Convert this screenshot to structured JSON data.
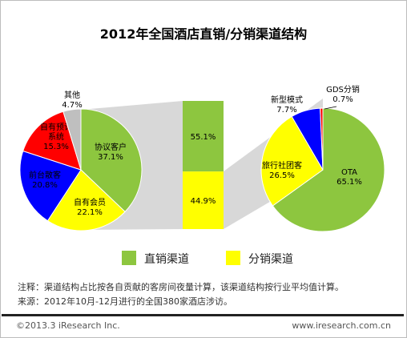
{
  "colors": {
    "green": "#8dc63f",
    "yellow": "#ffff00",
    "red": "#ff0000",
    "blue": "#0000ff",
    "grey": "#bfbfbf"
  },
  "chart_data": [
    {
      "type": "pie",
      "title": "2012年全国酒店直销/分销渠道结构",
      "name": "left-pie",
      "slices": [
        {
          "label": "协议客户",
          "value": 37.1,
          "display": "37.1%",
          "color": "#8dc63f"
        },
        {
          "label": "自有会员",
          "value": 22.1,
          "display": "22.1%",
          "color": "#ffff00"
        },
        {
          "label": "前台散客",
          "value": 20.8,
          "display": "20.8%",
          "color": "#0000ff"
        },
        {
          "label": "自有预订\n系统",
          "value": 15.3,
          "display": "15.3%",
          "color": "#ff0000"
        },
        {
          "label": "其他",
          "value": 4.7,
          "display": "4.7%",
          "color": "#bfbfbf"
        }
      ]
    },
    {
      "type": "bar",
      "name": "middle-stacked-bar",
      "categories": [
        "直销渠道",
        "分销渠道"
      ],
      "values": [
        55.1,
        44.9
      ],
      "display": [
        "55.1%",
        "44.9%"
      ],
      "colors": [
        "#8dc63f",
        "#ffff00"
      ]
    },
    {
      "type": "pie",
      "name": "right-pie",
      "slices": [
        {
          "label": "OTA",
          "value": 65.1,
          "display": "65.1%",
          "color": "#8dc63f"
        },
        {
          "label": "旅行社团客",
          "value": 26.5,
          "display": "26.5%",
          "color": "#ffff00"
        },
        {
          "label": "新型模式",
          "value": 7.7,
          "display": "7.7%",
          "color": "#0000ff"
        },
        {
          "label": "GDS分销",
          "value": 0.7,
          "display": "0.7%",
          "color": "#ff0000"
        }
      ]
    }
  ],
  "legend": [
    {
      "label": "直销渠道",
      "color": "#8dc63f"
    },
    {
      "label": "分销渠道",
      "color": "#ffff00"
    }
  ],
  "notes": {
    "note": "注释：渠道结构占比按各自贡献的客房间夜量计算，该渠道结构按行业平均值计算。",
    "source": "来源：2012年10月-12月进行的全国380家酒店涉访。"
  },
  "footer": {
    "copyright": "©2013.3 iResearch Inc.",
    "website": "www.iresearch.com.cn"
  }
}
